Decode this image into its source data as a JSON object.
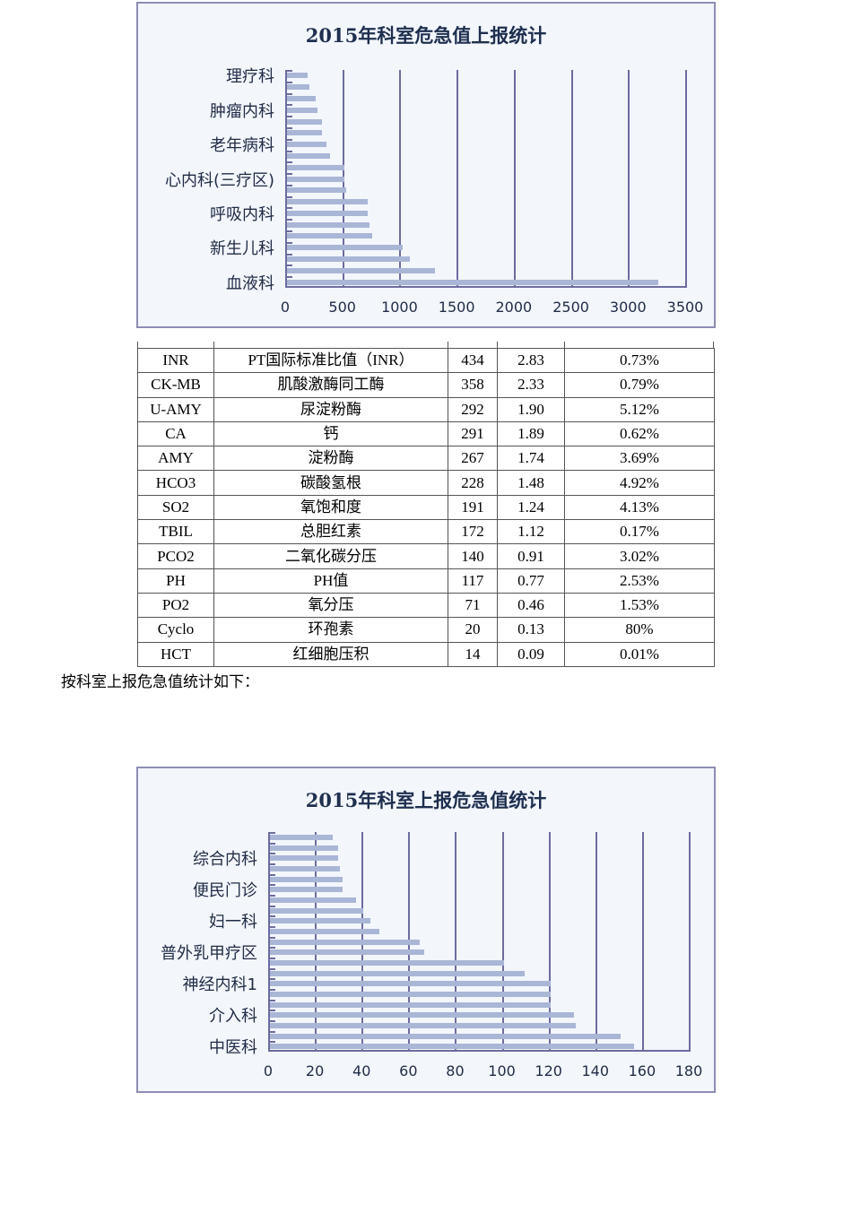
{
  "chart1": {
    "title": "2015年科室危急值上报统计",
    "labels": [
      "理疗科",
      "肿瘤内科",
      "老年病科",
      "心内科(三疗区)",
      "呼吸内科",
      "新生儿科",
      "血液科"
    ],
    "x_ticks": [
      "0",
      "500",
      "1000",
      "1500",
      "2000",
      "2500",
      "3000",
      "3500"
    ]
  },
  "chart2": {
    "title": "2015年科室上报危急值统计",
    "labels": [
      "综合内科",
      "便民门诊",
      "妇一科",
      "普外乳甲疗区",
      "神经内科1",
      "介入科",
      "中医科"
    ],
    "x_ticks": [
      "0",
      "20",
      "40",
      "60",
      "80",
      "100",
      "120",
      "140",
      "160",
      "180"
    ]
  },
  "chart_data": [
    {
      "type": "bar",
      "orientation": "horizontal",
      "title": "2015年科室危急值上报统计",
      "xlabel": "",
      "ylabel": "",
      "xlim": [
        0,
        3500
      ],
      "grid": true,
      "legend": "none",
      "categories": [
        "理疗科",
        "",
        "",
        "肿瘤内科",
        "",
        "",
        "老年病科",
        "",
        "",
        "心内科(三疗区)",
        "",
        "",
        "呼吸内科",
        "",
        "",
        "新生儿科",
        "",
        "",
        "血液科"
      ],
      "values": [
        183,
        194,
        249,
        267,
        306,
        306,
        343,
        374,
        503,
        503,
        521,
        704,
        704,
        720,
        749,
        1013,
        1079,
        1293,
        3250
      ],
      "tick_labels": [
        "0",
        "500",
        "1000",
        "1500",
        "2000",
        "2500",
        "3000",
        "3500"
      ]
    },
    {
      "type": "bar",
      "orientation": "horizontal",
      "title": "2015年科室上报危急值统计",
      "xlabel": "",
      "ylabel": "",
      "xlim": [
        0,
        180
      ],
      "grid": true,
      "legend": "none",
      "categories": [
        "",
        "",
        "综合内科",
        "",
        "",
        "便民门诊",
        "",
        "",
        "妇一科",
        "",
        "",
        "普外乳甲疗区",
        "",
        "",
        "神经内科1",
        "",
        "",
        "介入科",
        "",
        "",
        "中医科"
      ],
      "values": [
        27,
        29,
        29,
        30,
        31,
        31,
        37,
        40,
        43,
        47,
        64,
        66,
        100,
        109,
        120,
        120,
        120,
        130,
        131,
        150,
        156
      ],
      "tick_labels": [
        "0",
        "20",
        "40",
        "60",
        "80",
        "100",
        "120",
        "140",
        "160",
        "180"
      ]
    }
  ],
  "table": {
    "rows": [
      [
        "INR",
        "PT国际标准比值（INR）",
        "434",
        "2.83",
        "0.73%"
      ],
      [
        "CK-MB",
        "肌酸激酶同工酶",
        "358",
        "2.33",
        "0.79%"
      ],
      [
        "U-AMY",
        "尿淀粉酶",
        "292",
        "1.90",
        "5.12%"
      ],
      [
        "CA",
        "钙",
        "291",
        "1.89",
        "0.62%"
      ],
      [
        "AMY",
        "淀粉酶",
        "267",
        "1.74",
        "3.69%"
      ],
      [
        "HCO3",
        "碳酸氢根",
        "228",
        "1.48",
        "4.92%"
      ],
      [
        "SO2",
        "氧饱和度",
        "191",
        "1.24",
        "4.13%"
      ],
      [
        "TBIL",
        "总胆红素",
        "172",
        "1.12",
        "0.17%"
      ],
      [
        "PCO2",
        "二氧化碳分压",
        "140",
        "0.91",
        "3.02%"
      ],
      [
        "PH",
        "PH值",
        "117",
        "0.77",
        "2.53%"
      ],
      [
        "PO2",
        "氧分压",
        "71",
        "0.46",
        "1.53%"
      ],
      [
        "Cyclo",
        "环孢素",
        "20",
        "0.13",
        "80%"
      ],
      [
        "HCT",
        "红细胞压积",
        "14",
        "0.09",
        "0.01%"
      ]
    ]
  },
  "paragraph": "按科室上报危急值统计如下："
}
